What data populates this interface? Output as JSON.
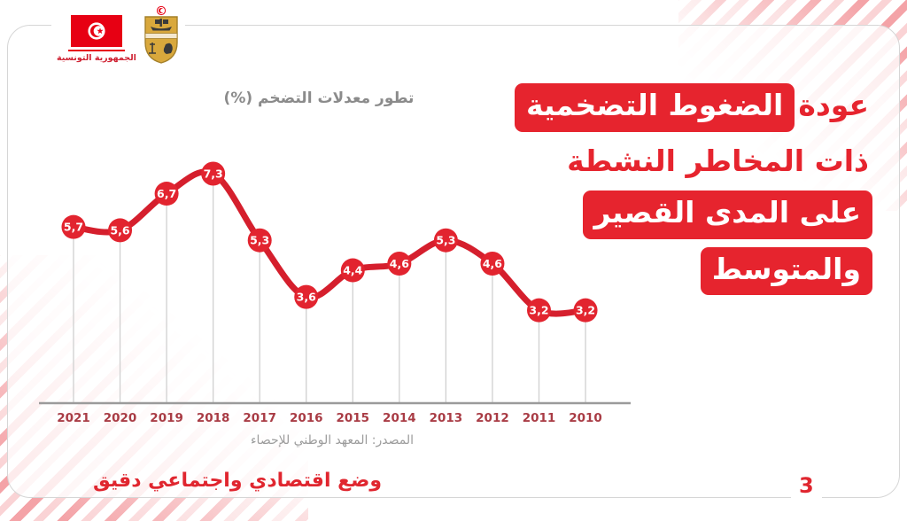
{
  "header": {
    "country_label": "الجمهورية التونسية"
  },
  "title": {
    "line1_plain": "عودة",
    "line1_highlight": "الضغوط التضخمية",
    "line2_plain": "ذات المخاطر النشطة",
    "line3_highlight": "على المدى القصير",
    "line4_highlight": "والمتوسط"
  },
  "chart_data": {
    "type": "line",
    "title": "تطور معدلات التضخم  (%)",
    "categories": [
      "2021",
      "2020",
      "2019",
      "2018",
      "2017",
      "2016",
      "2015",
      "2014",
      "2013",
      "2012",
      "2011",
      "2010"
    ],
    "values": [
      5.7,
      5.6,
      6.7,
      7.3,
      5.3,
      3.6,
      4.4,
      4.6,
      5.3,
      4.6,
      3.2,
      3.2
    ],
    "value_labels": [
      "5,7",
      "5,6",
      "6,7",
      "7,3",
      "5,3",
      "3,6",
      "4,4",
      "4,6",
      "5,3",
      "4,6",
      "3,2",
      "3,2"
    ],
    "x_order": "years descending left to right",
    "ylim": [
      0,
      8
    ],
    "grid": false,
    "droplines": true,
    "legend": "none",
    "source": "المصدر: المعهد الوطني للإحصاء"
  },
  "footer": {
    "caption": "وضع اقتصادي واجتماعي دقيق",
    "page_number": "3"
  },
  "colors": {
    "accent_red": "#e6242e",
    "line_red": "#d51f2d",
    "marker_red": "#e2242f",
    "flag_red": "#e70013",
    "emblem_gold": "#d9a83c",
    "year_label": "#a93c45",
    "axis_gray": "#9b9b9b",
    "dropline_gray": "#d0d0d0",
    "title_gray": "#8b8b8b",
    "border_gray": "#d6d6d6"
  }
}
